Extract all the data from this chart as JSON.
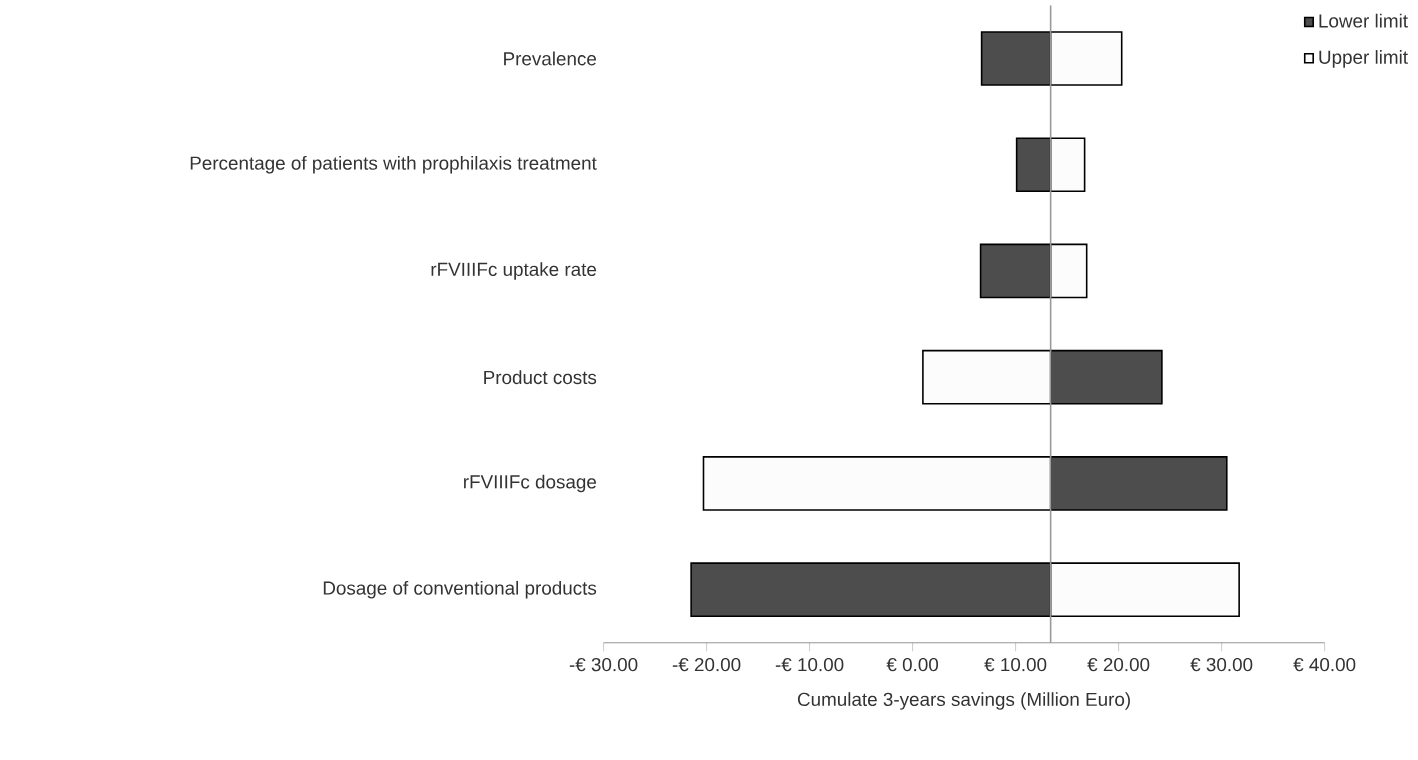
{
  "chart_data": {
    "type": "bar",
    "orientation": "horizontal",
    "categories": [
      "Prevalence",
      "Percentage of patients with prophilaxis treatment",
      "rFVIIIFc uptake rate",
      "Product costs",
      "rFVIIIFc dosage",
      "Dosage of conventional products"
    ],
    "series": [
      {
        "name": "Lower limit",
        "color": "#4d4d4d",
        "base": [
          13.4,
          13.4,
          13.4,
          13.4,
          13.4,
          13.4
        ],
        "values": [
          -6.7,
          -3.3,
          -6.8,
          10.8,
          17.1,
          -34.9
        ]
      },
      {
        "name": "Upper limit",
        "color": "#fcfcfc",
        "base": [
          13.4,
          13.4,
          13.4,
          13.4,
          13.4,
          13.4
        ],
        "values": [
          6.9,
          3.3,
          3.5,
          -12.4,
          -33.7,
          18.3
        ]
      }
    ],
    "xlim": [
      -30,
      40
    ],
    "xticks": [
      {
        "value": -30,
        "label": "-€ 30.00"
      },
      {
        "value": -20,
        "label": "-€ 20.00"
      },
      {
        "value": -10,
        "label": "-€ 10.00"
      },
      {
        "value": 0,
        "label": "€ 0.00"
      },
      {
        "value": 10,
        "label": "€ 10.00"
      },
      {
        "value": 20,
        "label": "€ 20.00"
      },
      {
        "value": 30,
        "label": "€ 30.00"
      },
      {
        "value": 40,
        "label": "€ 40.00"
      }
    ],
    "xlabel": "Cumulate 3-years savings (Million Euro)",
    "legend": "top right",
    "ref_lines": [
      {
        "axis": "x",
        "value": 13.4,
        "color": "#999999"
      }
    ]
  }
}
